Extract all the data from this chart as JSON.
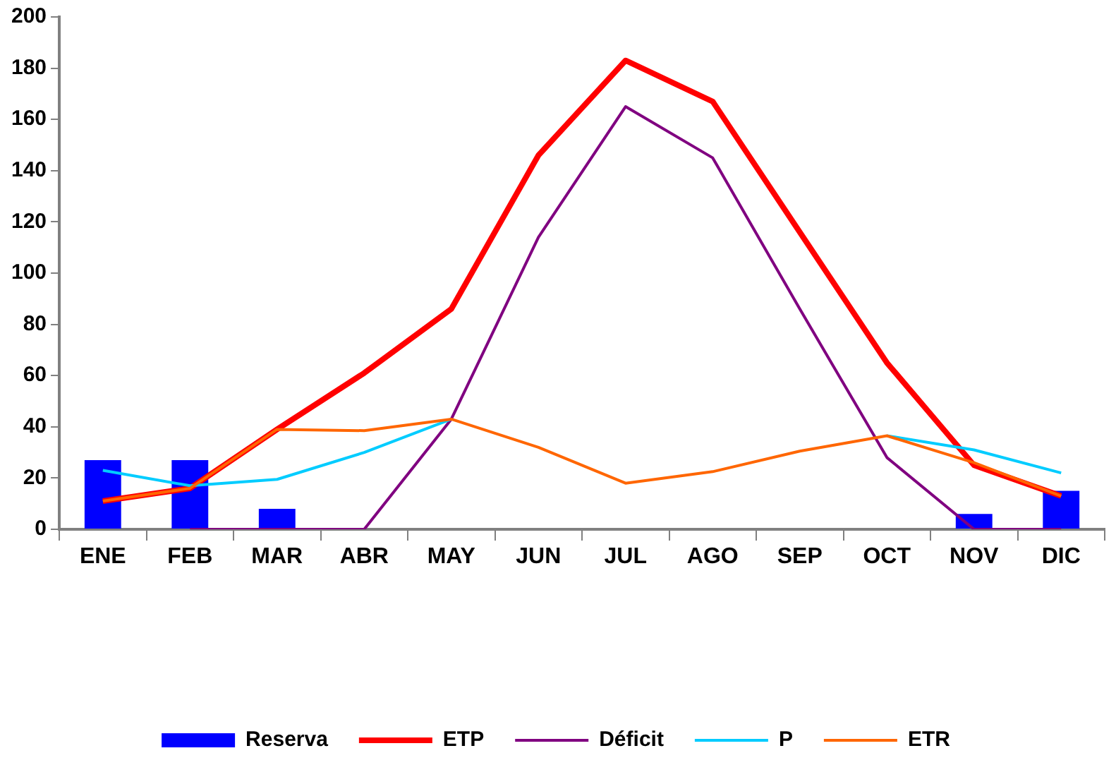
{
  "chart_data": {
    "type": "bar",
    "categories": [
      "ENE",
      "FEB",
      "MAR",
      "ABR",
      "MAY",
      "JUN",
      "JUL",
      "AGO",
      "SEP",
      "OCT",
      "NOV",
      "DIC"
    ],
    "series": [
      {
        "name": "Reserva",
        "color": "#0000ff",
        "values": [
          27,
          27,
          8,
          0,
          0,
          0,
          0,
          0,
          0,
          0,
          6,
          15
        ]
      },
      {
        "name": "ETP",
        "type": "line",
        "color": "#ff0000",
        "values": [
          11,
          16,
          39,
          61,
          86,
          146,
          183,
          167,
          116,
          65,
          25,
          13
        ]
      },
      {
        "name": "Déficit",
        "type": "line",
        "color": "#800080",
        "values": [
          null,
          0,
          0,
          0,
          43,
          114,
          165,
          145,
          86,
          28,
          0,
          0
        ]
      },
      {
        "name": "P",
        "type": "line",
        "color": "#00ccff",
        "values": [
          23,
          17,
          19.5,
          30,
          43,
          null,
          null,
          null,
          null,
          36.5,
          31,
          22
        ]
      },
      {
        "name": "ETR",
        "type": "line",
        "color": "#ff6600",
        "values": [
          11,
          16,
          39,
          38.5,
          43,
          32,
          18,
          22.5,
          30.5,
          36.5,
          26,
          13
        ]
      }
    ],
    "ylim": [
      0,
      200
    ],
    "yticks": [
      0,
      20,
      40,
      60,
      80,
      100,
      120,
      140,
      160,
      180,
      200
    ],
    "grid": false,
    "legend": "bottom",
    "marker": "none",
    "line_style": "solid"
  }
}
